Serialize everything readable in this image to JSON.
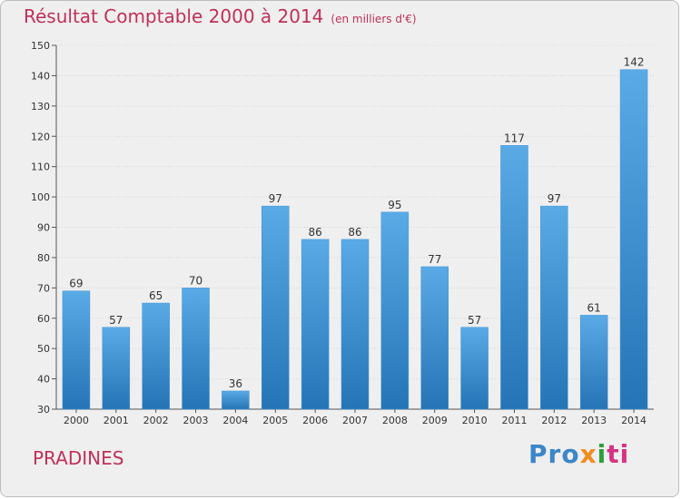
{
  "title": "Résultat Comptable 2000 à 2014",
  "subtitle": "(en milliers d'€)",
  "city": "PRADINES",
  "logo": {
    "p1": "Pro",
    "p2": "x",
    "p3": "i",
    "p4": "ti"
  },
  "colors": {
    "bar": "#3d94d8",
    "bar_light": "#5aaae6",
    "bar_dark": "#2574b6",
    "title": "#c0305a",
    "grid": "#d4d4d4"
  },
  "chart_data": {
    "type": "bar",
    "categories": [
      "2000",
      "2001",
      "2002",
      "2003",
      "2004",
      "2005",
      "2006",
      "2007",
      "2008",
      "2009",
      "2010",
      "2011",
      "2012",
      "2013",
      "2014"
    ],
    "values": [
      69,
      57,
      65,
      70,
      36,
      97,
      86,
      86,
      95,
      77,
      57,
      117,
      97,
      61,
      142
    ],
    "title": "Résultat Comptable 2000 à 2014",
    "subtitle": "(en milliers d'€)",
    "xlabel": "",
    "ylabel": "",
    "ylim": [
      30,
      150
    ],
    "yticks": [
      30,
      40,
      50,
      60,
      70,
      80,
      90,
      100,
      110,
      120,
      130,
      140,
      150
    ],
    "grid": true,
    "legend": "none"
  }
}
